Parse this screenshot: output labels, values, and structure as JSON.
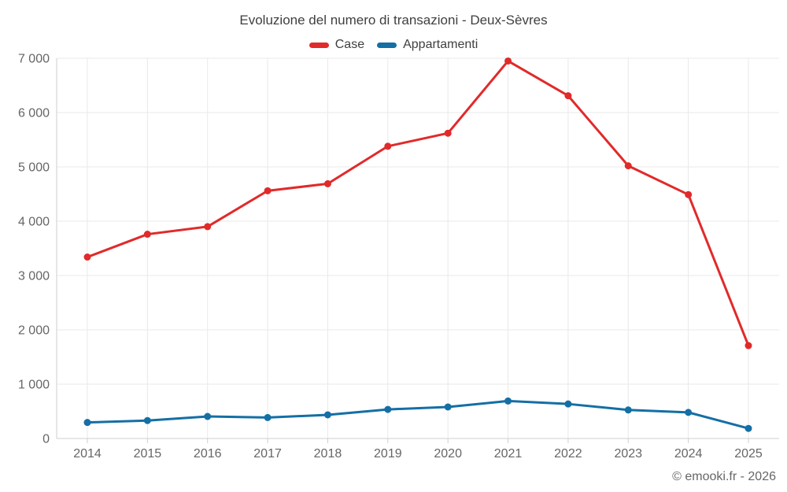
{
  "title": "Evoluzione del numero di transazioni - Deux-Sèvres",
  "footer": {
    "text": "© emooki.fr - 2026"
  },
  "chart_data": {
    "type": "line",
    "title": "Evoluzione del numero di transazioni - Deux-Sèvres",
    "xlabel": "",
    "ylabel": "",
    "categories": [
      "2014",
      "2015",
      "2016",
      "2017",
      "2018",
      "2019",
      "2020",
      "2021",
      "2022",
      "2023",
      "2024",
      "2025"
    ],
    "series": [
      {
        "id": "case",
        "name": "Case",
        "color": "#e12a2a",
        "values": [
          3340,
          3760,
          3900,
          4560,
          4690,
          5380,
          5620,
          6950,
          6310,
          5020,
          4490,
          1710
        ]
      },
      {
        "id": "appartamenti",
        "name": "Appartamenti",
        "color": "#146fa5",
        "values": [
          295,
          330,
          405,
          385,
          435,
          535,
          580,
          690,
          635,
          525,
          480,
          185
        ]
      }
    ],
    "ylim": [
      0,
      7000
    ],
    "y_tick_step": 1000,
    "y_tick_labels": [
      "0",
      "1 000",
      "2 000",
      "3 000",
      "4 000",
      "5 000",
      "6 000",
      "7 000"
    ],
    "grid": true,
    "legend_position": "top",
    "colors": {
      "grid": "#e9e9e9",
      "axis": "#cfcfcf",
      "tick_text": "#666666"
    }
  }
}
